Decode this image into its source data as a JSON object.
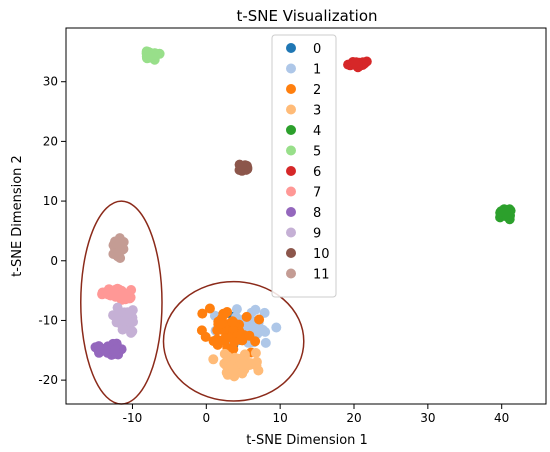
{
  "chart_data": {
    "type": "scatter",
    "title": "t-SNE Visualization",
    "xlabel": "t-SNE Dimension 1",
    "ylabel": "t-SNE Dimension 2",
    "xlim": [
      -19,
      46
    ],
    "ylim": [
      -24,
      39
    ],
    "xticks": [
      -10,
      0,
      10,
      20,
      30,
      40
    ],
    "yticks": [
      -20,
      -10,
      0,
      10,
      20,
      30
    ],
    "grid": false,
    "legend": "top-center",
    "series": [
      {
        "name": "0",
        "color": "#1f77b4",
        "center": [
          5,
          -12
        ],
        "spread": [
          4.5,
          3.5
        ],
        "count": 40
      },
      {
        "name": "1",
        "color": "#aec7e8",
        "center": [
          5,
          -11
        ],
        "spread": [
          5,
          4
        ],
        "count": 40
      },
      {
        "name": "2",
        "color": "#ff7f0e",
        "center": [
          3,
          -12
        ],
        "spread": [
          5.5,
          5
        ],
        "count": 45
      },
      {
        "name": "3",
        "color": "#ffbb78",
        "center": [
          4,
          -17
        ],
        "spread": [
          4,
          2.5
        ],
        "count": 45
      },
      {
        "name": "4",
        "color": "#2ca02c",
        "center": [
          40.5,
          8
        ],
        "spread": [
          1.2,
          1.2
        ],
        "count": 30
      },
      {
        "name": "5",
        "color": "#98df8a",
        "center": [
          -7.5,
          34.5
        ],
        "spread": [
          1.5,
          1
        ],
        "count": 30
      },
      {
        "name": "6",
        "color": "#d62728",
        "center": [
          20.5,
          33
        ],
        "spread": [
          1.5,
          0.8
        ],
        "count": 30
      },
      {
        "name": "7",
        "color": "#ff9896",
        "center": [
          -12,
          -5.5
        ],
        "spread": [
          3,
          1.5
        ],
        "count": 35
      },
      {
        "name": "8",
        "color": "#9467bd",
        "center": [
          -13,
          -15
        ],
        "spread": [
          2.5,
          1.5
        ],
        "count": 35
      },
      {
        "name": "9",
        "color": "#c5b0d5",
        "center": [
          -11,
          -10
        ],
        "spread": [
          2,
          2.5
        ],
        "count": 35
      },
      {
        "name": "10",
        "color": "#8c564b",
        "center": [
          5,
          15.5
        ],
        "spread": [
          1,
          1
        ],
        "count": 25
      },
      {
        "name": "11",
        "color": "#c49c94",
        "center": [
          -12,
          2
        ],
        "spread": [
          1.2,
          2.5
        ],
        "count": 30
      }
    ],
    "annotations": [
      {
        "type": "ellipse",
        "cx": -11.5,
        "cy": -7,
        "rx": 5.5,
        "ry": 17,
        "color": "#8b2a1a"
      },
      {
        "type": "ellipse",
        "cx": 3.7,
        "cy": -13.5,
        "rx": 9.5,
        "ry": 10,
        "color": "#8b2a1a"
      }
    ]
  }
}
